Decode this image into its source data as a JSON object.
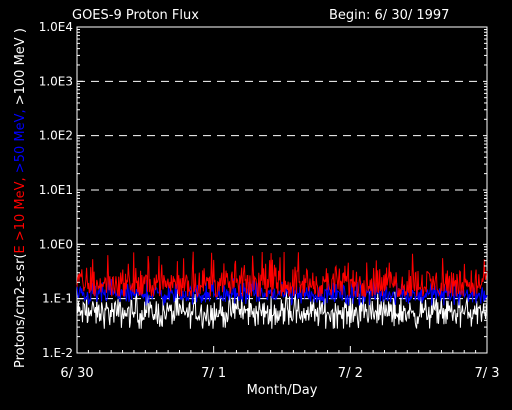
{
  "header": {
    "title": "GOES-9 Proton Flux",
    "begin_label": "Begin: 6/ 30/ 1997"
  },
  "chart_data": {
    "type": "line",
    "xlabel": "Month/Day",
    "ylabel_parts": [
      {
        "text": "Protons/cm2-s-sr(",
        "color": "#ffffff"
      },
      {
        "text": "E >10 MeV, ",
        "color": "#ff0000"
      },
      {
        "text": ">50 MeV, ",
        "color": "#0000ff"
      },
      {
        "text": ">100 MeV )",
        "color": "#ffffff"
      }
    ],
    "y_scale": "log",
    "ylim": [
      0.01,
      10000
    ],
    "y_ticks": [
      {
        "value": 0.01,
        "label": "1.E-2"
      },
      {
        "value": 0.1,
        "label": "1.E-1"
      },
      {
        "value": 1,
        "label": "1.0E0"
      },
      {
        "value": 10,
        "label": "1.0E1"
      },
      {
        "value": 100,
        "label": "1.0E2"
      },
      {
        "value": 1000,
        "label": "1.0E3"
      },
      {
        "value": 10000,
        "label": "1.0E4"
      }
    ],
    "xlim": [
      0,
      3
    ],
    "x_ticks": [
      {
        "value": 0,
        "label": "6/ 30"
      },
      {
        "value": 1,
        "label": "7/ 1"
      },
      {
        "value": 2,
        "label": "7/ 2"
      },
      {
        "value": 3,
        "label": "7/ 3"
      }
    ],
    "grid": "dashed-horizontal",
    "series": [
      {
        "name": "E >10 MeV",
        "color": "#ff0000",
        "mean": 0.19,
        "min": 0.11,
        "max": 0.75
      },
      {
        "name": ">50 MeV",
        "color": "#0000ff",
        "mean": 0.12,
        "min": 0.075,
        "max": 0.25
      },
      {
        "name": ">100 MeV",
        "color": "#ffffff",
        "mean": 0.055,
        "min": 0.028,
        "max": 0.15
      }
    ]
  }
}
